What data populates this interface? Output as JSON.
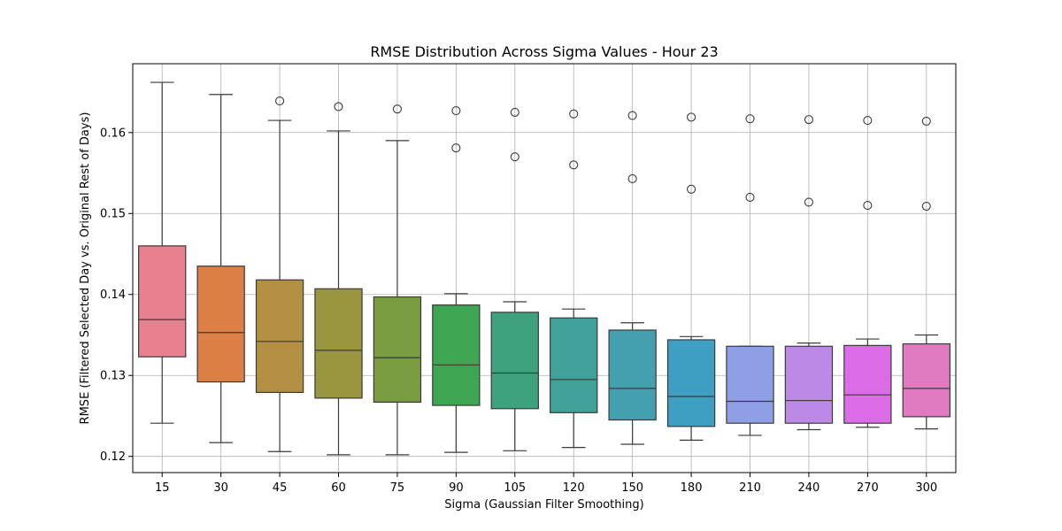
{
  "chart_data": {
    "type": "box",
    "title": "RMSE Distribution Across Sigma Values - Hour 23",
    "xlabel": "Sigma (Gaussian Filter Smoothing)",
    "ylabel": "RMSE (Filtered Selected Day vs. Original Rest of Days)",
    "categories": [
      "15",
      "30",
      "45",
      "60",
      "75",
      "90",
      "105",
      "120",
      "150",
      "180",
      "210",
      "240",
      "270",
      "300"
    ],
    "ylim": [
      0.118,
      0.1685
    ],
    "yticks": [
      0.12,
      0.13,
      0.14,
      0.15,
      0.16
    ],
    "ytick_labels": [
      "0.12",
      "0.13",
      "0.14",
      "0.15",
      "0.16"
    ],
    "grid": true,
    "colors": [
      "#e8808f",
      "#db7f46",
      "#b38f44",
      "#9a953f",
      "#7a9c40",
      "#3ea652",
      "#3fa27f",
      "#42a29a",
      "#43a1ad",
      "#3f9fc2",
      "#8e9fe5",
      "#bc8ae6",
      "#db6ce5",
      "#e07bbf"
    ],
    "boxes": [
      {
        "whisker_low": 0.1241,
        "q1": 0.1323,
        "median": 0.1369,
        "q3": 0.146,
        "whisker_high": 0.1662,
        "outliers": []
      },
      {
        "whisker_low": 0.1217,
        "q1": 0.1292,
        "median": 0.1353,
        "q3": 0.1435,
        "whisker_high": 0.1647,
        "outliers": []
      },
      {
        "whisker_low": 0.1206,
        "q1": 0.1279,
        "median": 0.1342,
        "q3": 0.1418,
        "whisker_high": 0.1615,
        "outliers": [
          0.1639
        ]
      },
      {
        "whisker_low": 0.1202,
        "q1": 0.1272,
        "median": 0.1331,
        "q3": 0.1407,
        "whisker_high": 0.1602,
        "outliers": [
          0.1632
        ]
      },
      {
        "whisker_low": 0.1202,
        "q1": 0.1267,
        "median": 0.1322,
        "q3": 0.1397,
        "whisker_high": 0.159,
        "outliers": [
          0.1629
        ]
      },
      {
        "whisker_low": 0.1205,
        "q1": 0.1263,
        "median": 0.1313,
        "q3": 0.1387,
        "whisker_high": 0.1401,
        "outliers": [
          0.1627,
          0.1581
        ]
      },
      {
        "whisker_low": 0.1207,
        "q1": 0.1259,
        "median": 0.1303,
        "q3": 0.1378,
        "whisker_high": 0.1391,
        "outliers": [
          0.1625,
          0.157
        ]
      },
      {
        "whisker_low": 0.1211,
        "q1": 0.1254,
        "median": 0.1295,
        "q3": 0.1371,
        "whisker_high": 0.1382,
        "outliers": [
          0.1623,
          0.156
        ]
      },
      {
        "whisker_low": 0.1215,
        "q1": 0.1245,
        "median": 0.1284,
        "q3": 0.1356,
        "whisker_high": 0.1365,
        "outliers": [
          0.1621,
          0.1543
        ]
      },
      {
        "whisker_low": 0.122,
        "q1": 0.1237,
        "median": 0.1274,
        "q3": 0.1344,
        "whisker_high": 0.1348,
        "outliers": [
          0.1619,
          0.153
        ]
      },
      {
        "whisker_low": 0.1226,
        "q1": 0.1241,
        "median": 0.1268,
        "q3": 0.1336,
        "whisker_high": 0.1336,
        "outliers": [
          0.1617,
          0.152
        ]
      },
      {
        "whisker_low": 0.1233,
        "q1": 0.1241,
        "median": 0.1269,
        "q3": 0.1336,
        "whisker_high": 0.134,
        "outliers": [
          0.1616,
          0.1514
        ]
      },
      {
        "whisker_low": 0.1236,
        "q1": 0.1241,
        "median": 0.1276,
        "q3": 0.1337,
        "whisker_high": 0.1345,
        "outliers": [
          0.1615,
          0.151
        ]
      },
      {
        "whisker_low": 0.1234,
        "q1": 0.1249,
        "median": 0.1284,
        "q3": 0.1339,
        "whisker_high": 0.135,
        "outliers": [
          0.1614,
          0.1509
        ]
      }
    ]
  }
}
